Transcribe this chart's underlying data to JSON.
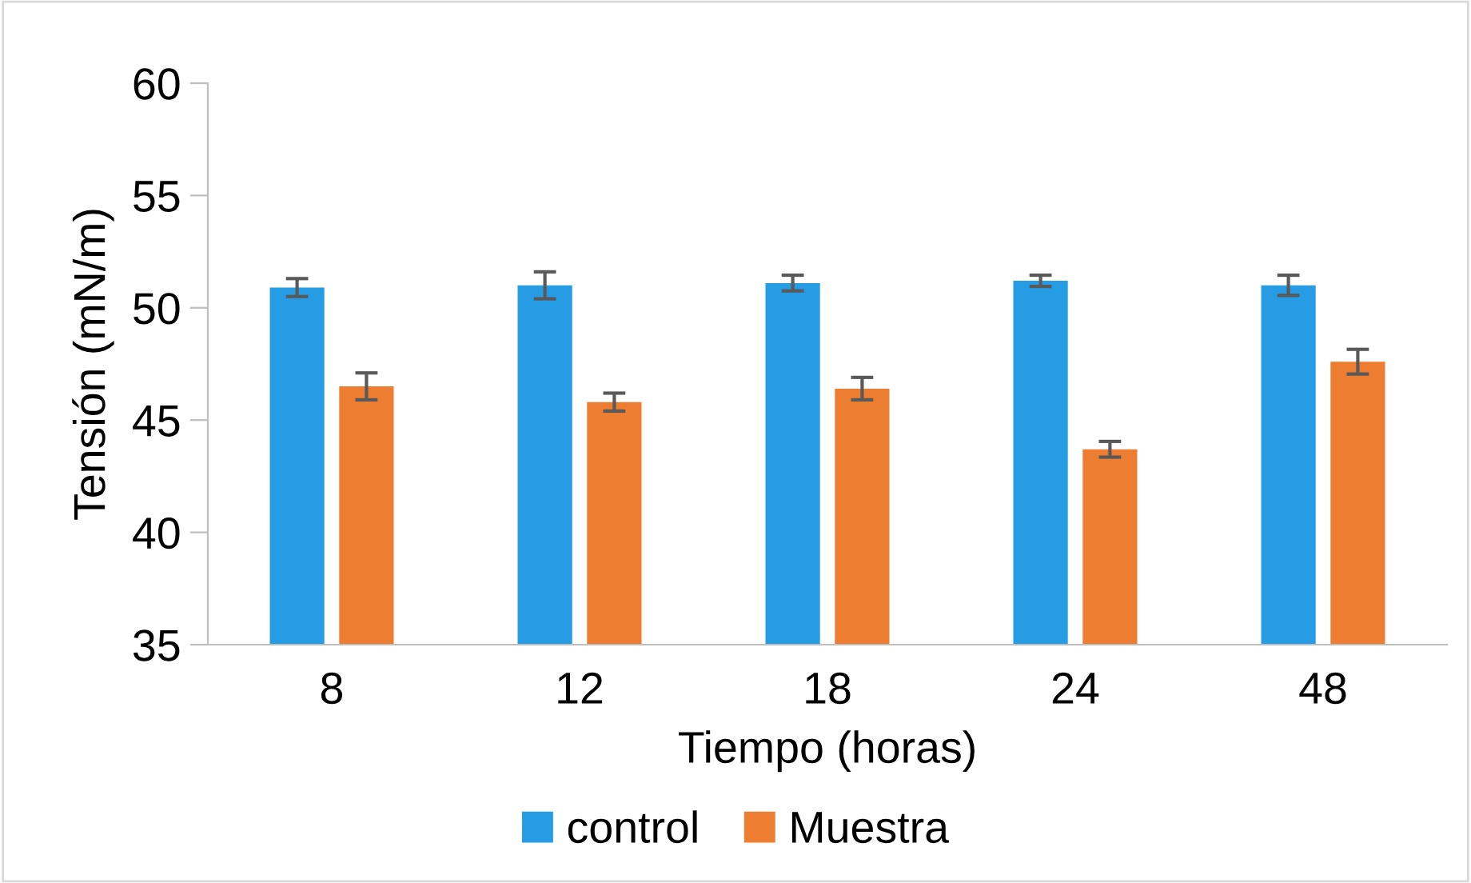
{
  "chart_data": {
    "type": "bar",
    "xlabel": "Tiempo (horas)",
    "ylabel": "Tensión (mN/m)",
    "categories": [
      "8",
      "12",
      "18",
      "24",
      "48"
    ],
    "series": [
      {
        "name": "control",
        "color": "#269ce4",
        "values": [
          50.9,
          51.0,
          51.1,
          51.2,
          51.0
        ],
        "errors": [
          0.4,
          0.6,
          0.35,
          0.25,
          0.45
        ]
      },
      {
        "name": "Muestra",
        "color": "#ed7d31",
        "values": [
          46.5,
          45.8,
          46.4,
          43.7,
          47.6
        ],
        "errors": [
          0.6,
          0.4,
          0.5,
          0.35,
          0.55
        ]
      }
    ],
    "ylim": [
      35,
      60
    ],
    "yticks": [
      35,
      40,
      45,
      50,
      55,
      60
    ],
    "grid": false,
    "legend": "bottom"
  }
}
